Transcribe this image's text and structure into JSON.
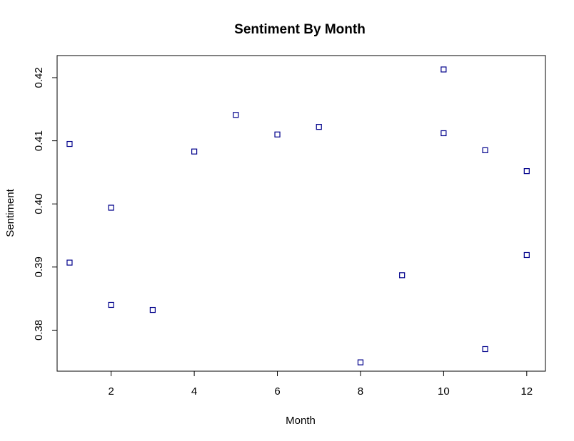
{
  "chart_data": {
    "type": "scatter",
    "title": "Sentiment By Month",
    "xlabel": "Month",
    "ylabel": "Sentiment",
    "xlim": [
      0.7,
      12.45
    ],
    "ylim": [
      0.3735,
      0.4235
    ],
    "xticks": [
      2,
      4,
      6,
      8,
      10,
      12
    ],
    "yticks": [
      0.38,
      0.39,
      0.4,
      0.41,
      0.42
    ],
    "ytick_labels": [
      "0.38",
      "0.39",
      "0.40",
      "0.41",
      "0.42"
    ],
    "grid": false,
    "legend": "none",
    "marker": "open-square",
    "marker_color": "#00008B",
    "points": [
      {
        "x": 1,
        "y": 0.4095
      },
      {
        "x": 1,
        "y": 0.3907
      },
      {
        "x": 2,
        "y": 0.3994
      },
      {
        "x": 2,
        "y": 0.384
      },
      {
        "x": 3,
        "y": 0.3832
      },
      {
        "x": 4,
        "y": 0.4083
      },
      {
        "x": 5,
        "y": 0.4141
      },
      {
        "x": 6,
        "y": 0.411
      },
      {
        "x": 7,
        "y": 0.4122
      },
      {
        "x": 8,
        "y": 0.3749
      },
      {
        "x": 9,
        "y": 0.3887
      },
      {
        "x": 10,
        "y": 0.4213
      },
      {
        "x": 10,
        "y": 0.4112
      },
      {
        "x": 11,
        "y": 0.4085
      },
      {
        "x": 11,
        "y": 0.377
      },
      {
        "x": 12,
        "y": 0.4052
      },
      {
        "x": 12,
        "y": 0.3919
      }
    ]
  }
}
